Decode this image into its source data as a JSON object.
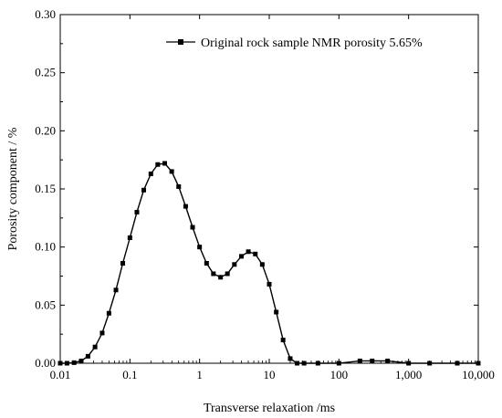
{
  "chart_data": {
    "type": "line",
    "xscale": "log",
    "xlim": [
      0.01,
      10000
    ],
    "ylim": [
      0.0,
      0.3
    ],
    "xlabel": "Transverse relaxation /ms",
    "ylabel": "Porosity component / %",
    "x_ticks": [
      0.01,
      0.1,
      1,
      10,
      100,
      1000,
      10000
    ],
    "x_tick_labels": [
      "0.01",
      "0.1",
      "1",
      "10",
      "100",
      "1,000",
      "10,000"
    ],
    "y_ticks": [
      0.0,
      0.05,
      0.1,
      0.15,
      0.2,
      0.25,
      0.3
    ],
    "y_tick_labels": [
      "0.00",
      "0.05",
      "0.10",
      "0.15",
      "0.20",
      "0.25",
      "0.30"
    ],
    "grid": false,
    "legend_position": "top-right",
    "series": [
      {
        "name": "Original rock sample NMR porosity 5.65%",
        "color": "#000000",
        "marker": "square",
        "x": [
          0.01,
          0.0125,
          0.0158,
          0.02,
          0.025,
          0.0316,
          0.04,
          0.05,
          0.063,
          0.079,
          0.1,
          0.126,
          0.158,
          0.2,
          0.251,
          0.316,
          0.398,
          0.501,
          0.631,
          0.794,
          1.0,
          1.26,
          1.58,
          2.0,
          2.51,
          3.16,
          3.98,
          5.01,
          6.31,
          7.94,
          10.0,
          12.6,
          15.8,
          20.0,
          25.1,
          31.6,
          50,
          100,
          200,
          300,
          500,
          1000,
          2000,
          5000,
          10000
        ],
        "y": [
          0.0,
          0.0,
          0.0005,
          0.002,
          0.006,
          0.014,
          0.026,
          0.043,
          0.063,
          0.086,
          0.108,
          0.13,
          0.149,
          0.163,
          0.171,
          0.172,
          0.165,
          0.152,
          0.135,
          0.117,
          0.1,
          0.086,
          0.077,
          0.074,
          0.077,
          0.085,
          0.092,
          0.096,
          0.094,
          0.085,
          0.068,
          0.044,
          0.02,
          0.004,
          0.0,
          0.0,
          0.0,
          0.0,
          0.002,
          0.002,
          0.002,
          0.0,
          0.0,
          0.0,
          0.0
        ]
      }
    ]
  }
}
